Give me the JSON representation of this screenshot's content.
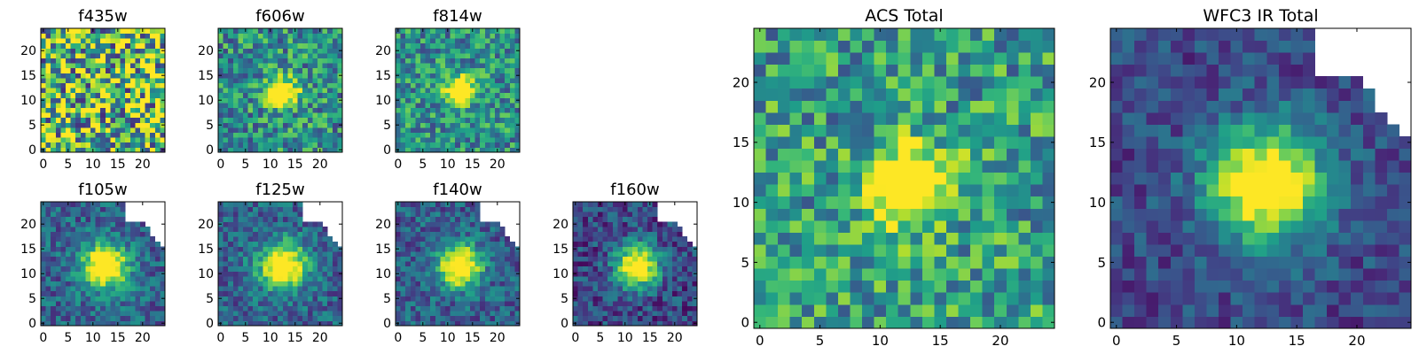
{
  "chart_data": [
    {
      "type": "heatmap",
      "title": "f435w",
      "xlabel": "",
      "ylabel": "",
      "grid": false,
      "xlim": [
        0,
        24
      ],
      "ylim": [
        0,
        24
      ],
      "xticks": [
        0,
        5,
        10,
        15,
        20
      ],
      "yticks": [
        0,
        5,
        10,
        15,
        20
      ],
      "colormap": "viridis",
      "source_center": null,
      "source_width": 0,
      "noise_level": 0.55,
      "background_level": 0.68,
      "masked_upper_right": false
    },
    {
      "type": "heatmap",
      "title": "f606w",
      "xlabel": "",
      "ylabel": "",
      "grid": false,
      "xlim": [
        0,
        24
      ],
      "ylim": [
        0,
        24
      ],
      "xticks": [
        0,
        5,
        10,
        15,
        20
      ],
      "yticks": [
        0,
        5,
        10,
        15,
        20
      ],
      "colormap": "viridis",
      "source_center": [
        12.5,
        11.5
      ],
      "source_width": 2.0,
      "noise_level": 0.3,
      "background_level": 0.5,
      "masked_upper_right": false
    },
    {
      "type": "heatmap",
      "title": "f814w",
      "xlabel": "",
      "ylabel": "",
      "grid": false,
      "xlim": [
        0,
        24
      ],
      "ylim": [
        0,
        24
      ],
      "xticks": [
        0,
        5,
        10,
        15,
        20
      ],
      "yticks": [
        0,
        5,
        10,
        15,
        20
      ],
      "colormap": "viridis",
      "source_center": [
        12.5,
        12.0
      ],
      "source_width": 2.0,
      "noise_level": 0.28,
      "background_level": 0.5,
      "masked_upper_right": false
    },
    {
      "type": "heatmap",
      "title": "f105w",
      "xlabel": "",
      "ylabel": "",
      "grid": false,
      "xlim": [
        0,
        24
      ],
      "ylim": [
        0,
        24
      ],
      "xticks": [
        0,
        5,
        10,
        15,
        20
      ],
      "yticks": [
        0,
        5,
        10,
        15,
        20
      ],
      "colormap": "viridis",
      "source_center": [
        12.5,
        11.5
      ],
      "source_width": 3.2,
      "noise_level": 0.2,
      "background_level": 0.32,
      "masked_upper_right": true
    },
    {
      "type": "heatmap",
      "title": "f125w",
      "xlabel": "",
      "ylabel": "",
      "grid": false,
      "xlim": [
        0,
        24
      ],
      "ylim": [
        0,
        24
      ],
      "xticks": [
        0,
        5,
        10,
        15,
        20
      ],
      "yticks": [
        0,
        5,
        10,
        15,
        20
      ],
      "colormap": "viridis",
      "source_center": [
        12.5,
        11.5
      ],
      "source_width": 3.2,
      "noise_level": 0.2,
      "background_level": 0.32,
      "masked_upper_right": true
    },
    {
      "type": "heatmap",
      "title": "f140w",
      "xlabel": "",
      "ylabel": "",
      "grid": false,
      "xlim": [
        0,
        24
      ],
      "ylim": [
        0,
        24
      ],
      "xticks": [
        0,
        5,
        10,
        15,
        20
      ],
      "yticks": [
        0,
        5,
        10,
        15,
        20
      ],
      "colormap": "viridis",
      "source_center": [
        12.5,
        11.5
      ],
      "source_width": 3.0,
      "noise_level": 0.2,
      "background_level": 0.3,
      "masked_upper_right": true
    },
    {
      "type": "heatmap",
      "title": "f160w",
      "xlabel": "",
      "ylabel": "",
      "grid": false,
      "xlim": [
        0,
        24
      ],
      "ylim": [
        0,
        24
      ],
      "xticks": [
        0,
        5,
        10,
        15,
        20
      ],
      "yticks": [
        0,
        5,
        10,
        15,
        20
      ],
      "colormap": "viridis",
      "source_center": [
        12.5,
        11.5
      ],
      "source_width": 3.0,
      "noise_level": 0.2,
      "background_level": 0.22,
      "masked_upper_right": true
    },
    {
      "type": "heatmap",
      "title": "ACS Total",
      "xlabel": "",
      "ylabel": "",
      "grid": false,
      "xlim": [
        0,
        24
      ],
      "ylim": [
        0,
        24
      ],
      "xticks": [
        0,
        5,
        10,
        15,
        20
      ],
      "yticks": [
        0,
        5,
        10,
        15,
        20
      ],
      "colormap": "viridis",
      "source_center": [
        12.5,
        11.5
      ],
      "source_width": 2.3,
      "noise_level": 0.3,
      "background_level": 0.55,
      "masked_upper_right": false
    },
    {
      "type": "heatmap",
      "title": "WFC3 IR Total",
      "xlabel": "",
      "ylabel": "",
      "grid": false,
      "xlim": [
        0,
        24
      ],
      "ylim": [
        0,
        24
      ],
      "xticks": [
        0,
        5,
        10,
        15,
        20
      ],
      "yticks": [
        0,
        5,
        10,
        15,
        20
      ],
      "colormap": "viridis",
      "source_center": [
        12.5,
        11.5
      ],
      "source_width": 3.4,
      "noise_level": 0.15,
      "background_level": 0.22,
      "masked_upper_right": true
    }
  ]
}
